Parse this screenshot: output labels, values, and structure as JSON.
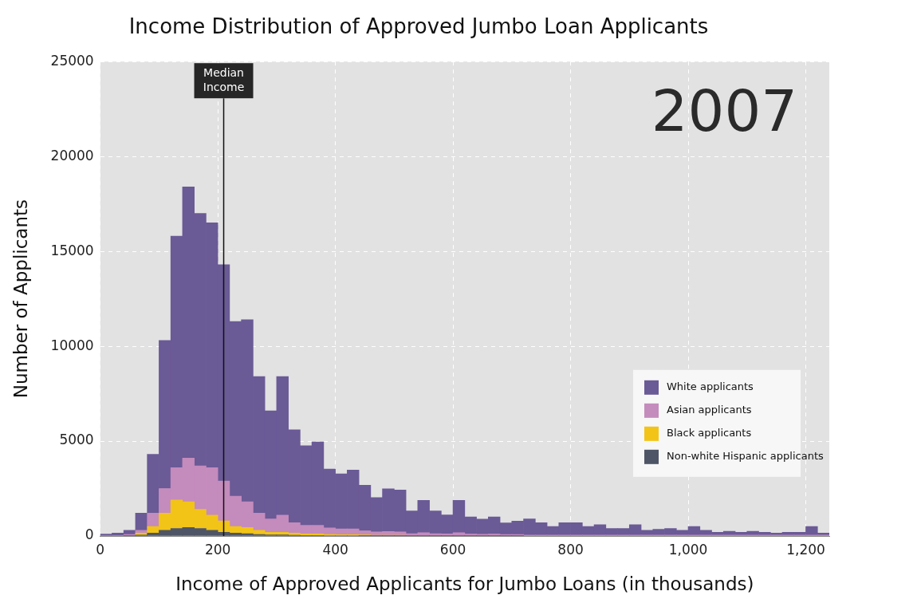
{
  "chart_data": {
    "type": "histogram",
    "title": "Income Distribution of Approved Jumbo Loan Applicants",
    "x_label": "Income of Approved Applicants for Jumbo Loans (in thousands)",
    "y_label": "Number of Applicants",
    "bins": [
      0,
      20,
      40,
      60,
      80,
      100,
      120,
      140,
      160,
      180,
      200,
      220,
      240,
      260,
      280,
      300,
      320,
      340,
      360,
      380,
      400,
      420,
      440,
      460,
      480,
      500,
      520,
      540,
      560,
      580,
      600,
      620,
      640,
      660,
      680,
      700,
      720,
      740,
      760,
      780,
      800,
      820,
      840,
      860,
      880,
      900,
      920,
      940,
      960,
      980,
      1000,
      1020,
      1040,
      1060,
      1080,
      1100,
      1120,
      1140,
      1160,
      1180,
      1200,
      1220,
      1240
    ],
    "series": [
      {
        "name": "White applicants",
        "color": "#6a5a96",
        "values": [
          80,
          120,
          220,
          900,
          3100,
          7800,
          12200,
          14300,
          13300,
          12900,
          11400,
          9200,
          9600,
          7200,
          5700,
          7300,
          4900,
          4200,
          4400,
          3100,
          2900,
          3100,
          2400,
          1800,
          2250,
          2200,
          1200,
          1700,
          1200,
          1000,
          1700,
          900,
          800,
          900,
          600,
          700,
          850,
          650,
          450,
          650,
          650,
          450,
          550,
          350,
          350,
          550,
          250,
          300,
          350,
          250,
          450,
          250,
          150,
          200,
          150,
          200,
          150,
          100,
          150,
          150,
          450,
          100
        ]
      },
      {
        "name": "Asian applicants",
        "color": "#c48bbd",
        "values": [
          20,
          30,
          50,
          150,
          700,
          1300,
          1700,
          2300,
          2300,
          2500,
          2100,
          1600,
          1350,
          900,
          700,
          900,
          550,
          450,
          450,
          350,
          300,
          300,
          220,
          180,
          200,
          180,
          100,
          150,
          100,
          90,
          150,
          80,
          70,
          80,
          60,
          60,
          40,
          40,
          40,
          40,
          40,
          40,
          40,
          40,
          40,
          40,
          40,
          40,
          40,
          40,
          40,
          40,
          40,
          40,
          40,
          40,
          40,
          40,
          40,
          40,
          40,
          40
        ]
      },
      {
        "name": "Black applicants",
        "color": "#f2c417",
        "values": [
          0,
          0,
          20,
          100,
          350,
          900,
          1500,
          1350,
          1000,
          800,
          600,
          350,
          330,
          220,
          140,
          140,
          110,
          80,
          80,
          60,
          50,
          50,
          40,
          30,
          30,
          30,
          20,
          20,
          20,
          20,
          20,
          20,
          20,
          20,
          20,
          20,
          10,
          10,
          10,
          10,
          10,
          10,
          10,
          10,
          10,
          10,
          10,
          10,
          10,
          10,
          10,
          10,
          10,
          10,
          10,
          10,
          10,
          10,
          10,
          10,
          10,
          10
        ]
      },
      {
        "name": "Non-white Hispanic applicants",
        "color": "#4e5566",
        "values": [
          0,
          0,
          10,
          50,
          150,
          300,
          400,
          450,
          400,
          300,
          200,
          150,
          120,
          80,
          60,
          60,
          40,
          30,
          30,
          20,
          20,
          20,
          15,
          10,
          10,
          10,
          5,
          5,
          5,
          5,
          5,
          5,
          5,
          5,
          5,
          5,
          0,
          0,
          0,
          0,
          0,
          0,
          0,
          0,
          0,
          0,
          0,
          0,
          0,
          0,
          0,
          0,
          0,
          0,
          0,
          0,
          0,
          0,
          0,
          0,
          0,
          0
        ]
      }
    ],
    "stacked": true,
    "xlim": [
      0,
      1240
    ],
    "xticks": [
      0,
      200,
      400,
      600,
      800,
      1000,
      1200
    ],
    "ylim": [
      0,
      25000
    ],
    "yticks": [
      0,
      5000,
      10000,
      15000,
      20000,
      25000
    ],
    "grid": true,
    "legend": "right",
    "annotations": [
      {
        "text": "Median Income",
        "x": 210
      },
      {
        "text": "2007"
      }
    ]
  }
}
